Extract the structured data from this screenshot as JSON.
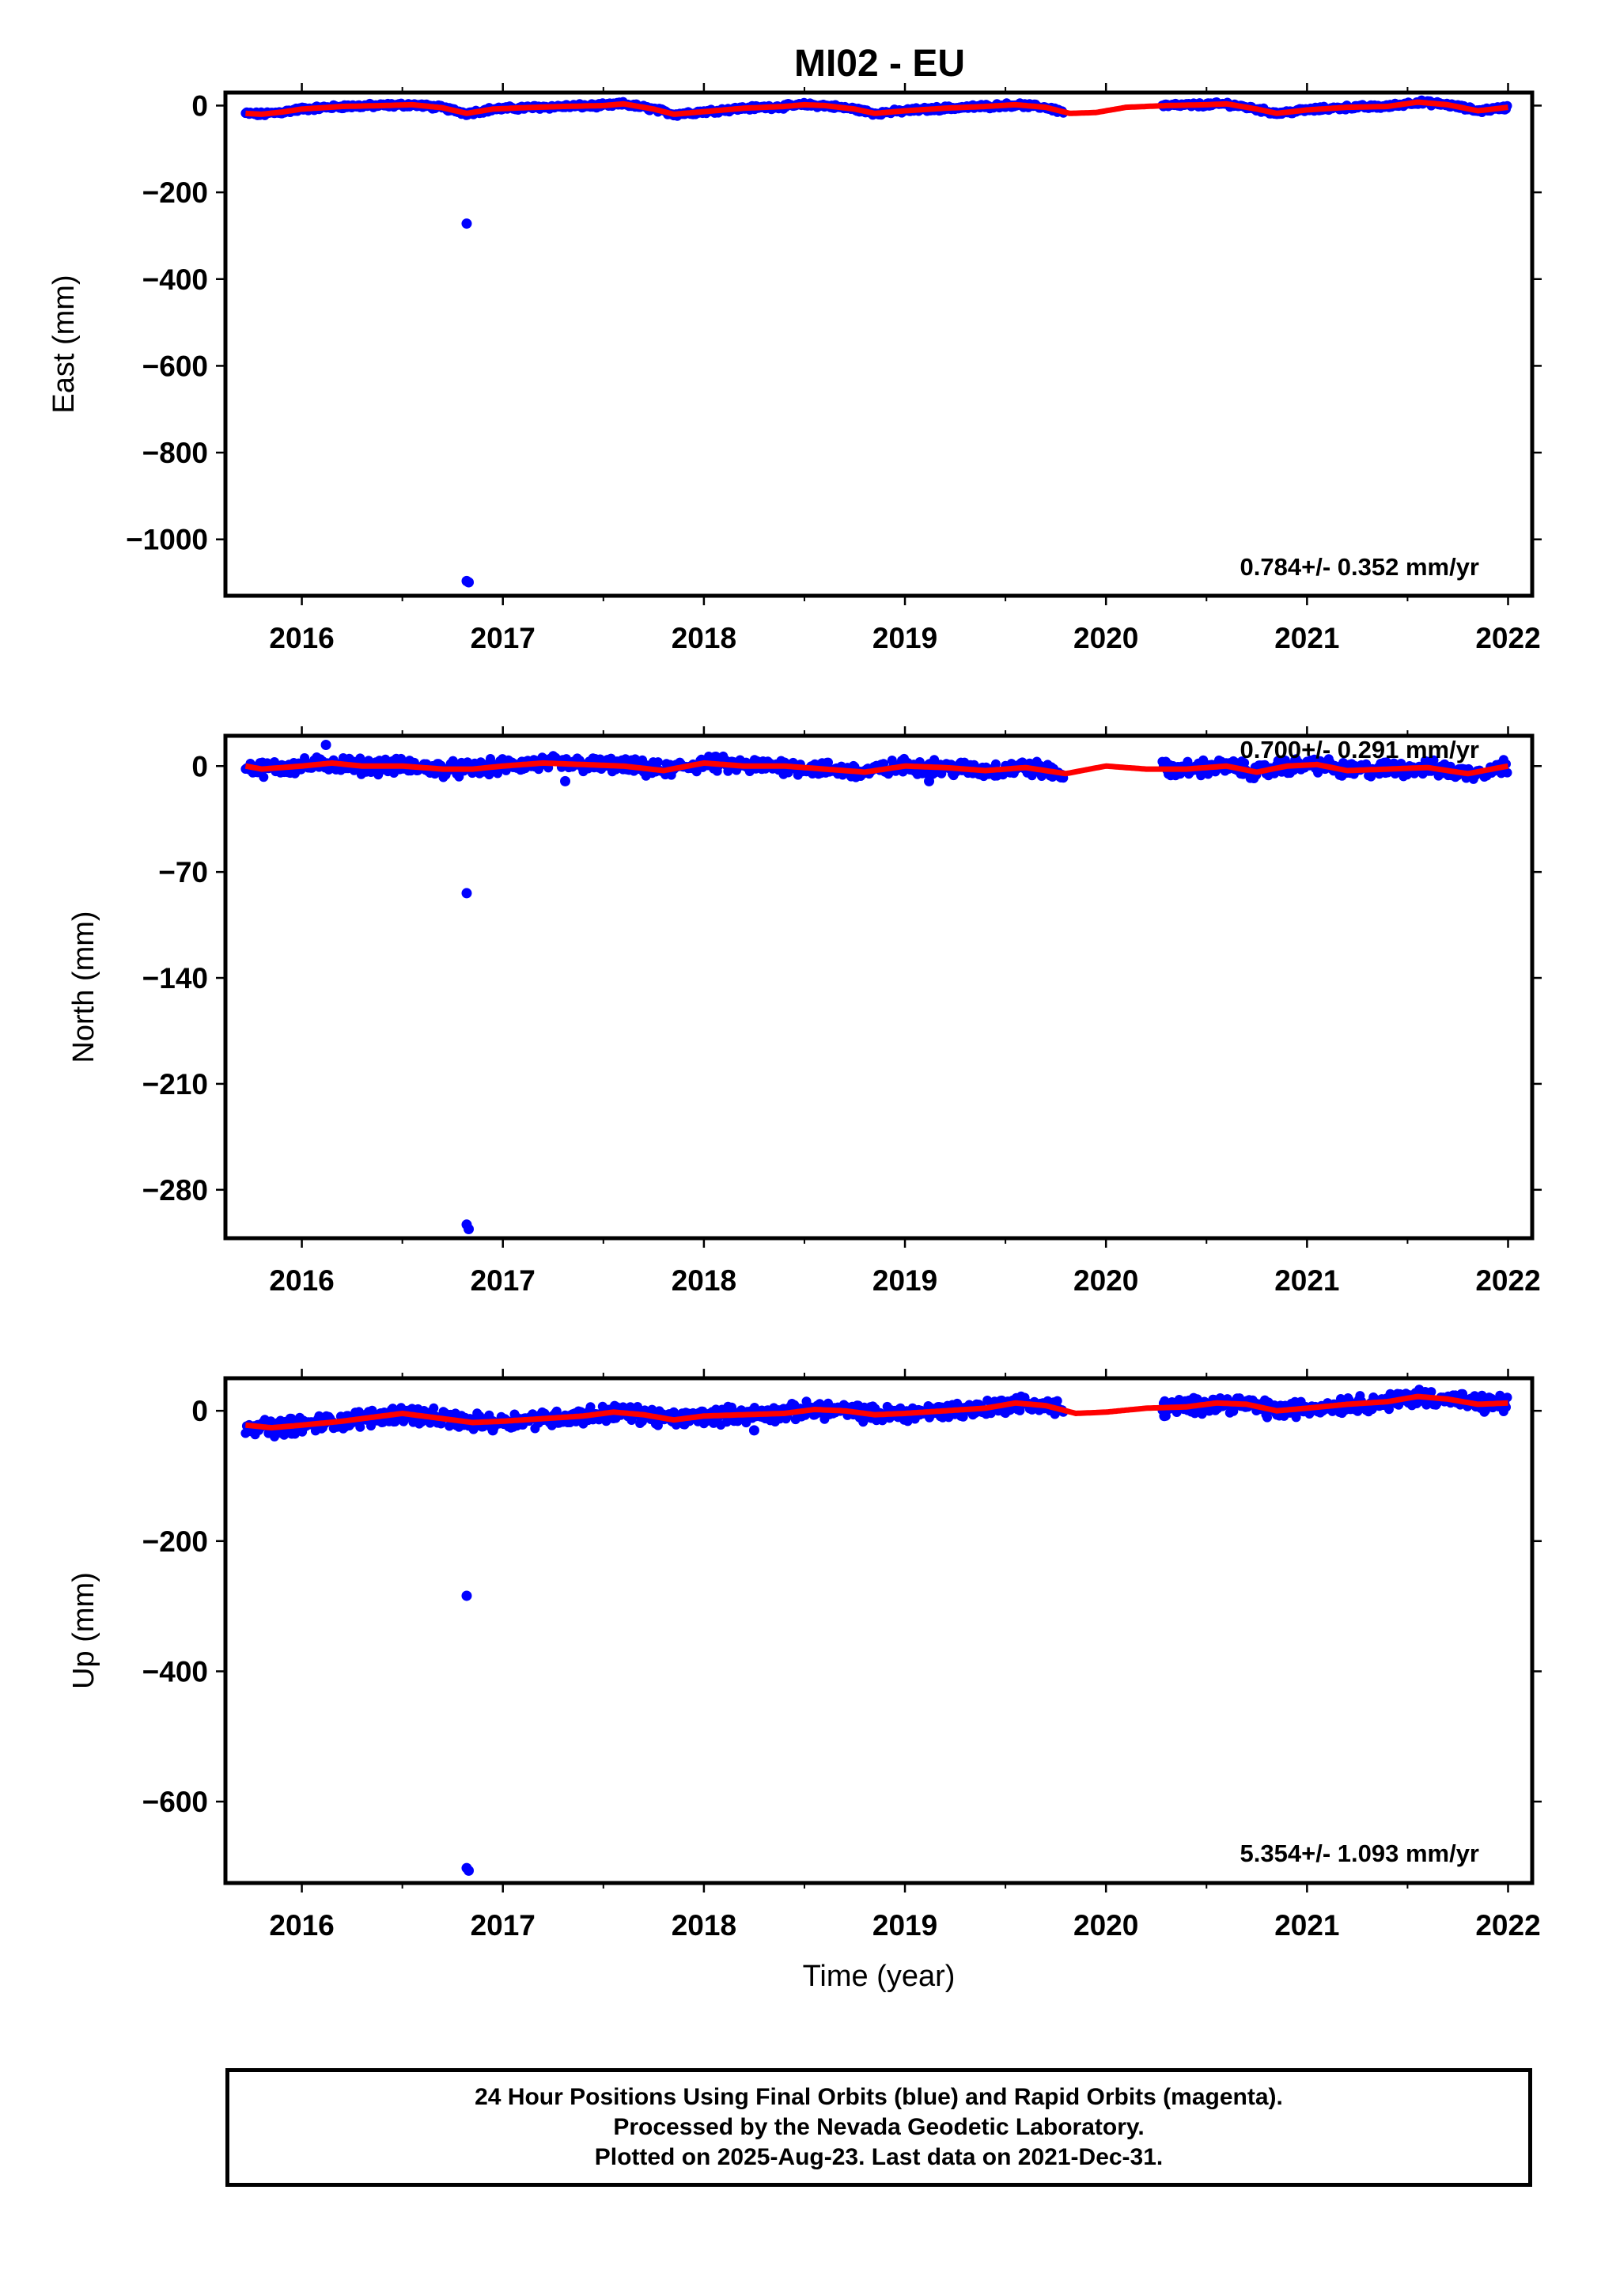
{
  "title": "MI02 - EU",
  "chart_data": [
    {
      "type": "scatter",
      "ylabel": "East (mm)",
      "xlabel": "",
      "xlim": [
        2015.62,
        2022.12
      ],
      "ylim": [
        -1130,
        30
      ],
      "x_ticks": [
        "2016",
        "2017",
        "2018",
        "2019",
        "2020",
        "2021",
        "2022"
      ],
      "y_ticks": [
        "0",
        "−200",
        "−400",
        "−600",
        "−800",
        "−1000"
      ],
      "y_tick_values": [
        0,
        -200,
        -400,
        -600,
        -800,
        -1000
      ],
      "rate_text": "0.784+/- 0.352 mm/yr",
      "observed_series": {
        "color": "#0000ff",
        "segments": [
          [
            2015.72,
            2019.79
          ],
          [
            2020.28,
            2022.0
          ]
        ],
        "spread": 4,
        "outliers": [
          [
            2016.82,
            -272
          ],
          [
            2016.82,
            -1096
          ],
          [
            2016.83,
            -1099
          ]
        ]
      },
      "model_series": {
        "color": "#ff0000",
        "points": [
          [
            2015.72,
            -18
          ],
          [
            2015.8,
            -20
          ],
          [
            2015.9,
            -15
          ],
          [
            2016.0,
            -8
          ],
          [
            2016.2,
            -2
          ],
          [
            2016.4,
            0
          ],
          [
            2016.55,
            2
          ],
          [
            2016.7,
            -5
          ],
          [
            2016.82,
            -18
          ],
          [
            2016.95,
            -8
          ],
          [
            2017.1,
            -5
          ],
          [
            2017.3,
            -2
          ],
          [
            2017.5,
            0
          ],
          [
            2017.6,
            4
          ],
          [
            2017.75,
            -8
          ],
          [
            2017.85,
            -20
          ],
          [
            2018.0,
            -14
          ],
          [
            2018.2,
            -6
          ],
          [
            2018.4,
            -2
          ],
          [
            2018.5,
            2
          ],
          [
            2018.6,
            0
          ],
          [
            2018.75,
            -8
          ],
          [
            2018.85,
            -18
          ],
          [
            2019.0,
            -12
          ],
          [
            2019.2,
            -6
          ],
          [
            2019.4,
            -2
          ],
          [
            2019.55,
            2
          ],
          [
            2019.7,
            -4
          ],
          [
            2019.82,
            -18
          ],
          [
            2019.95,
            -16
          ],
          [
            2020.1,
            -4
          ],
          [
            2020.3,
            0
          ],
          [
            2020.5,
            2
          ],
          [
            2020.6,
            4
          ],
          [
            2020.75,
            -8
          ],
          [
            2020.85,
            -18
          ],
          [
            2021.0,
            -10
          ],
          [
            2021.2,
            -4
          ],
          [
            2021.4,
            -2
          ],
          [
            2021.55,
            8
          ],
          [
            2021.7,
            2
          ],
          [
            2021.85,
            -12
          ],
          [
            2022.0,
            -4
          ]
        ]
      }
    },
    {
      "type": "scatter",
      "ylabel": "North (mm)",
      "xlabel": "",
      "xlim": [
        2015.62,
        2022.12
      ],
      "ylim": [
        -312,
        20
      ],
      "x_ticks": [
        "2016",
        "2017",
        "2018",
        "2019",
        "2020",
        "2021",
        "2022"
      ],
      "y_ticks": [
        "0",
        "−70",
        "−140",
        "−210",
        "−280"
      ],
      "y_tick_values": [
        0,
        -70,
        -140,
        -210,
        -280
      ],
      "rate_text": "0.700+/- 0.291 mm/yr",
      "observed_series": {
        "color": "#0000ff",
        "segments": [
          [
            2015.72,
            2019.79
          ],
          [
            2020.28,
            2022.0
          ]
        ],
        "spread": 4,
        "outliers": [
          [
            2016.82,
            -84
          ],
          [
            2016.82,
            -303
          ],
          [
            2016.83,
            -306
          ],
          [
            2016.12,
            14
          ],
          [
            2017.31,
            -10
          ],
          [
            2019.12,
            -10
          ]
        ]
      },
      "model_series": {
        "color": "#ff0000",
        "points": [
          [
            2015.72,
            0
          ],
          [
            2015.8,
            -2
          ],
          [
            2015.9,
            -1
          ],
          [
            2016.0,
            0
          ],
          [
            2016.15,
            2
          ],
          [
            2016.3,
            0
          ],
          [
            2016.5,
            0
          ],
          [
            2016.7,
            -2
          ],
          [
            2016.85,
            -2
          ],
          [
            2017.0,
            0
          ],
          [
            2017.2,
            2
          ],
          [
            2017.4,
            1
          ],
          [
            2017.6,
            0
          ],
          [
            2017.8,
            -3
          ],
          [
            2018.0,
            2
          ],
          [
            2018.2,
            0
          ],
          [
            2018.4,
            0
          ],
          [
            2018.6,
            -2
          ],
          [
            2018.8,
            -4
          ],
          [
            2019.0,
            0
          ],
          [
            2019.2,
            -1
          ],
          [
            2019.4,
            -3
          ],
          [
            2019.6,
            -1
          ],
          [
            2019.8,
            -5
          ],
          [
            2020.0,
            0
          ],
          [
            2020.2,
            -2
          ],
          [
            2020.4,
            -2
          ],
          [
            2020.6,
            0
          ],
          [
            2020.75,
            -4
          ],
          [
            2020.9,
            0
          ],
          [
            2021.05,
            1
          ],
          [
            2021.2,
            -3
          ],
          [
            2021.4,
            -2
          ],
          [
            2021.6,
            -1
          ],
          [
            2021.8,
            -5
          ],
          [
            2022.0,
            0
          ]
        ]
      }
    },
    {
      "type": "scatter",
      "ylabel": "Up (mm)",
      "xlabel": "Time (year)",
      "xlim": [
        2015.62,
        2022.12
      ],
      "ylim": [
        -725,
        50
      ],
      "x_ticks": [
        "2016",
        "2017",
        "2018",
        "2019",
        "2020",
        "2021",
        "2022"
      ],
      "y_ticks": [
        "0",
        "−200",
        "−400",
        "−600"
      ],
      "y_tick_values": [
        0,
        -200,
        -400,
        -600
      ],
      "rate_text": "5.354+/- 1.093 mm/yr",
      "observed_series": {
        "color": "#0000ff",
        "segments": [
          [
            2015.72,
            2019.79
          ],
          [
            2020.28,
            2022.0
          ]
        ],
        "spread": 10,
        "outliers": [
          [
            2016.82,
            -284
          ],
          [
            2016.82,
            -702
          ],
          [
            2016.83,
            -706
          ],
          [
            2015.95,
            -35
          ],
          [
            2016.95,
            -30
          ],
          [
            2018.25,
            -30
          ],
          [
            2020.29,
            -8
          ]
        ]
      },
      "model_series": {
        "color": "#ff0000",
        "points": [
          [
            2015.72,
            -22
          ],
          [
            2015.85,
            -26
          ],
          [
            2016.0,
            -22
          ],
          [
            2016.2,
            -16
          ],
          [
            2016.4,
            -8
          ],
          [
            2016.5,
            -4
          ],
          [
            2016.65,
            -10
          ],
          [
            2016.85,
            -18
          ],
          [
            2017.0,
            -16
          ],
          [
            2017.2,
            -12
          ],
          [
            2017.4,
            -8
          ],
          [
            2017.55,
            -2
          ],
          [
            2017.7,
            -6
          ],
          [
            2017.85,
            -14
          ],
          [
            2018.0,
            -8
          ],
          [
            2018.2,
            -6
          ],
          [
            2018.4,
            -4
          ],
          [
            2018.55,
            2
          ],
          [
            2018.7,
            0
          ],
          [
            2018.85,
            -6
          ],
          [
            2019.0,
            -4
          ],
          [
            2019.2,
            0
          ],
          [
            2019.4,
            4
          ],
          [
            2019.55,
            12
          ],
          [
            2019.7,
            8
          ],
          [
            2019.85,
            -4
          ],
          [
            2020.0,
            -2
          ],
          [
            2020.2,
            4
          ],
          [
            2020.4,
            6
          ],
          [
            2020.55,
            12
          ],
          [
            2020.7,
            10
          ],
          [
            2020.85,
            0
          ],
          [
            2021.0,
            4
          ],
          [
            2021.2,
            10
          ],
          [
            2021.4,
            14
          ],
          [
            2021.55,
            22
          ],
          [
            2021.7,
            18
          ],
          [
            2021.85,
            10
          ],
          [
            2022.0,
            12
          ]
        ]
      }
    }
  ],
  "footer": {
    "line1": "24 Hour Positions Using Final Orbits (blue) and Rapid Orbits (magenta).",
    "line2": "Processed by the Nevada Geodetic Laboratory.",
    "line3": "Plotted on 2025-Aug-23. Last data on 2021-Dec-31."
  }
}
